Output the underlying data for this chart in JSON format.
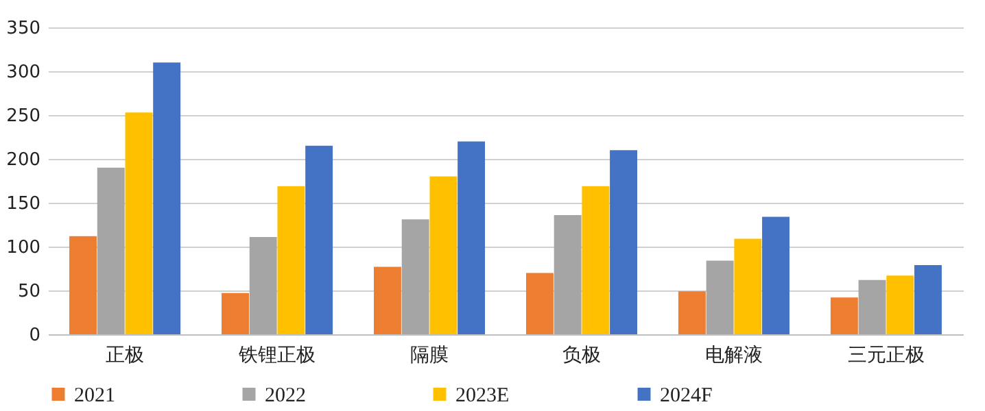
{
  "chart_data": {
    "type": "bar",
    "categories": [
      "正极",
      "铁锂正极",
      "隔膜",
      "负极",
      "电解液",
      "三元正极"
    ],
    "series": [
      {
        "name": "2021",
        "color": "#ed7d31",
        "values": [
          112,
          47,
          77,
          70,
          49,
          42
        ]
      },
      {
        "name": "2022",
        "color": "#a5a5a5",
        "values": [
          190,
          111,
          131,
          136,
          84,
          62
        ]
      },
      {
        "name": "2023E",
        "color": "#ffc000",
        "values": [
          253,
          169,
          180,
          169,
          109,
          67
        ]
      },
      {
        "name": "2024F",
        "color": "#4472c4",
        "values": [
          310,
          215,
          220,
          210,
          134,
          79
        ]
      }
    ],
    "ylim": [
      0,
      350
    ],
    "yticks": [
      0,
      50,
      100,
      150,
      200,
      250,
      300,
      350
    ],
    "grid": "y",
    "legend": "bottom"
  }
}
